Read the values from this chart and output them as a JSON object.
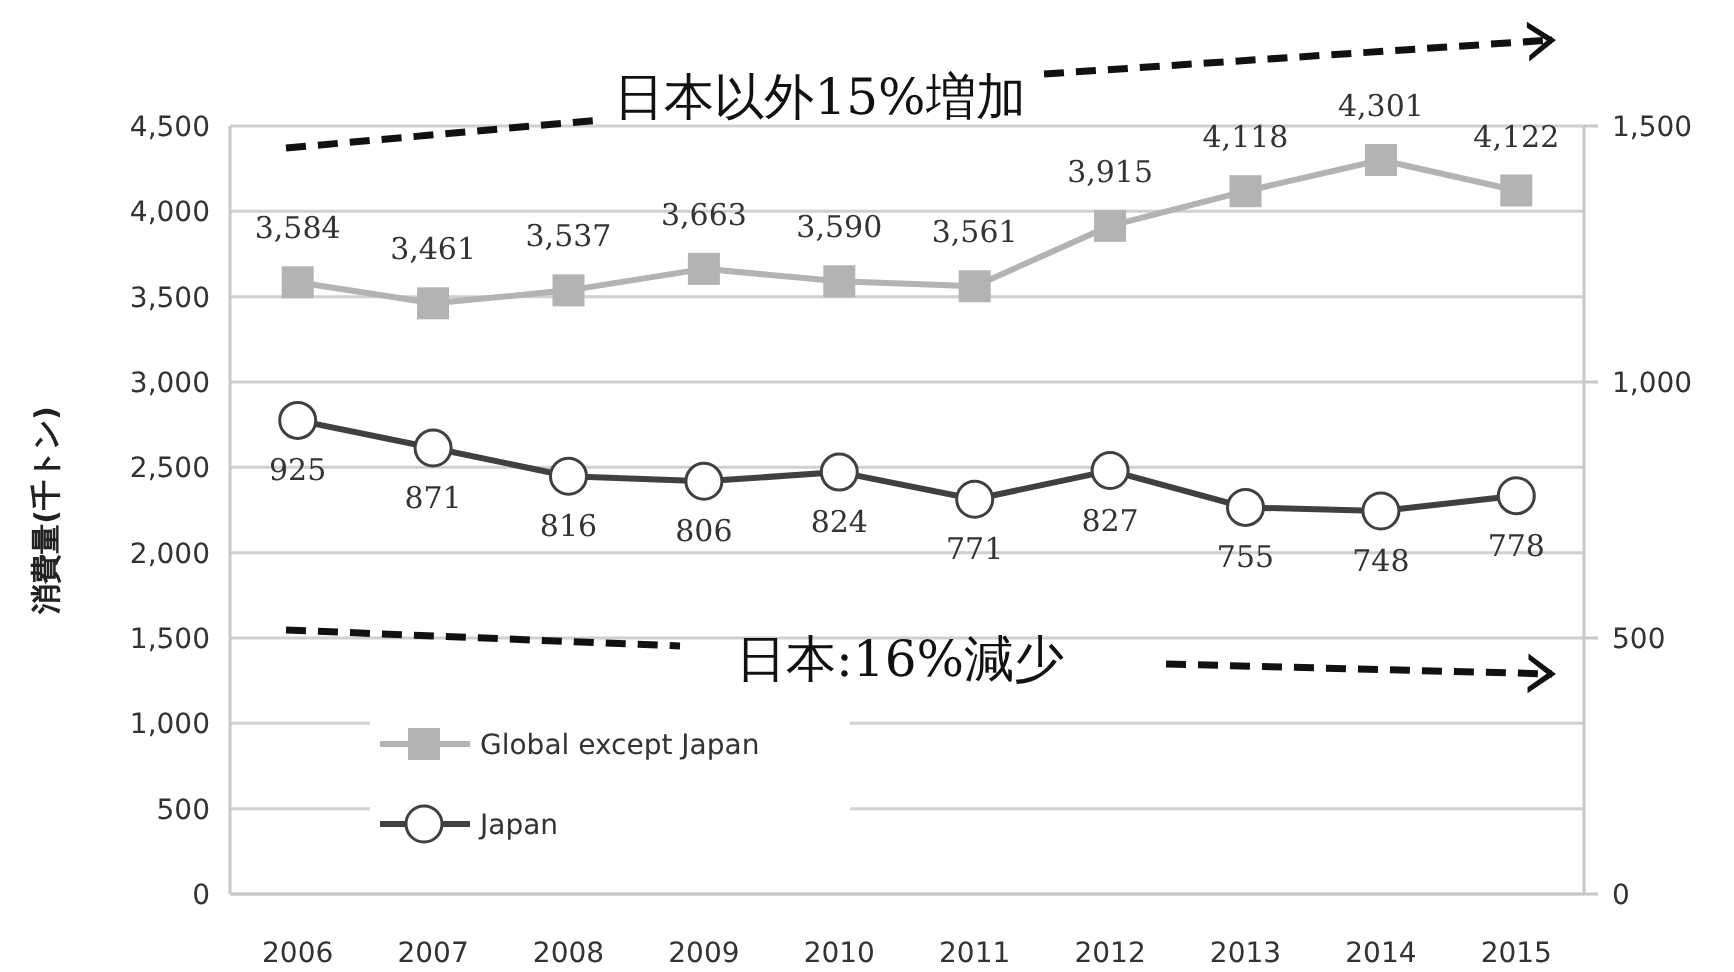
{
  "chart_data": {
    "type": "line",
    "ylabel": "消費量(千トン)",
    "categories": [
      "2006",
      "2007",
      "2008",
      "2009",
      "2010",
      "2011",
      "2012",
      "2013",
      "2014",
      "2015"
    ],
    "series": [
      {
        "name": "Global except Japan",
        "color": "#b3b3b3",
        "marker": "square",
        "values": [
          3584,
          3461,
          3537,
          3663,
          3590,
          3561,
          3915,
          4118,
          4301,
          4122
        ],
        "value_labels": [
          "3,584",
          "3,461",
          "3,537",
          "3,663",
          "3,590",
          "3,561",
          "3,915",
          "4,118",
          "4,301",
          "4,122"
        ]
      },
      {
        "name": "Japan",
        "color": "#404040",
        "marker": "circle",
        "axis": "y2",
        "values": [
          925,
          871,
          816,
          806,
          824,
          771,
          827,
          755,
          748,
          778
        ],
        "value_labels": [
          "925",
          "871",
          "816",
          "806",
          "824",
          "771",
          "827",
          "755",
          "748",
          "778"
        ]
      }
    ],
    "ylim": [
      0,
      4500
    ],
    "yticks": [
      0,
      {
        "value": 500,
        "label": "500"
      },
      {
        "value": 1000,
        "label": "1,000"
      },
      {
        "value": 1500,
        "label": "1,500"
      },
      {
        "value": 2000,
        "label": "2,000"
      },
      {
        "value": 2500,
        "label": "2,500"
      },
      {
        "value": 3000,
        "label": "3,000"
      },
      {
        "value": 3500,
        "label": "3,500"
      },
      {
        "value": 4000,
        "label": "4,000"
      },
      {
        "value": 4500,
        "label": "4,500"
      }
    ],
    "y2lim": [
      0,
      1500
    ],
    "y2ticks": [
      0,
      500,
      {
        "value": 1000,
        "label": "1,000"
      },
      {
        "value": 1500,
        "label": "1,500"
      }
    ],
    "grid": "y",
    "legend": "bottom left",
    "annotations": [
      "日本以外15%増加",
      "日本:16%減少"
    ]
  }
}
